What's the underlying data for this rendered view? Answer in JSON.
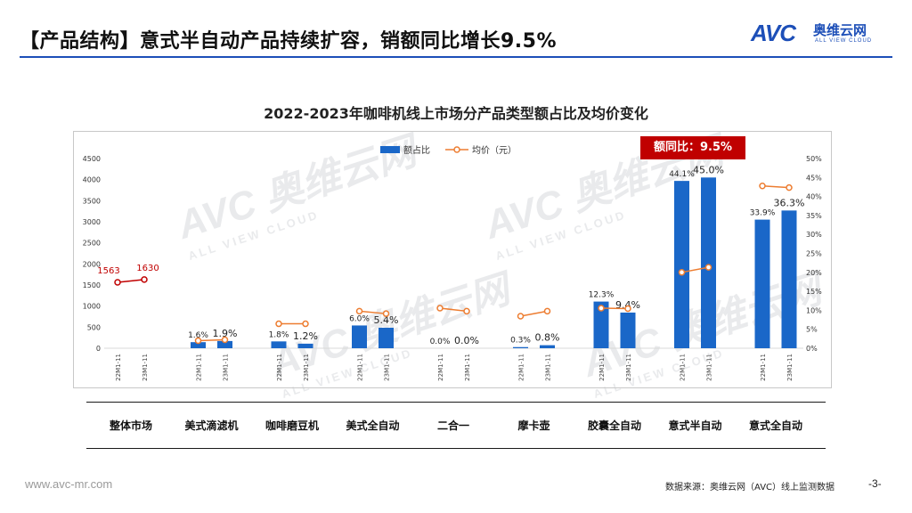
{
  "header": {
    "title": "【产品结构】意式半自动产品持续扩容，销额同比增长9.5%",
    "logo_main": "AVC",
    "logo_cn": "奥维云网",
    "logo_en": "ALL VIEW CLOUD"
  },
  "watermark": {
    "main": "AVC 奥维云网",
    "sub": "ALL VIEW CLOUD"
  },
  "callout": "额同比：9.5%",
  "footer": {
    "url": "www.avc-mr.com",
    "source": "数据来源：奥维云网（AVC）线上监测数据",
    "page": "-3-"
  },
  "colors": {
    "bar": "#1a67c8",
    "line": "#ed7d31",
    "first_line": "#c00000",
    "accent": "#1d4fb8"
  },
  "chart_data": {
    "type": "bar",
    "title": "2022-2023年咖啡机线上市场分产品类型额占比及均价变化",
    "legend": [
      "额占比",
      "均价（元）"
    ],
    "legend_position": "top",
    "categories": [
      "整体市场",
      "美式滴滤机",
      "咖啡磨豆机",
      "美式全自动",
      "二合一",
      "摩卡壶",
      "胶囊全自动",
      "意式半自动",
      "意式全自动"
    ],
    "period_labels": [
      "22M1-11",
      "23M1-11"
    ],
    "y_left_range": [
      0,
      4500
    ],
    "y_left_ticks": [
      "0",
      "500",
      "1000",
      "1500",
      "2000",
      "2500",
      "3000",
      "3500",
      "4000",
      "4500"
    ],
    "y_right_range": [
      0,
      50
    ],
    "y_right_ticks": [
      "0%",
      "5%",
      "10%",
      "15%",
      "20%",
      "25%",
      "30%",
      "35%",
      "40%",
      "45%",
      "50%"
    ],
    "series": [
      {
        "name": "额占比",
        "axis": "right",
        "unit": "%",
        "values": [
          [
            null,
            null
          ],
          [
            1.6,
            1.9
          ],
          [
            1.8,
            1.2
          ],
          [
            6.0,
            5.4
          ],
          [
            0.0,
            0.0
          ],
          [
            0.3,
            0.8
          ],
          [
            12.3,
            9.4
          ],
          [
            44.1,
            45.0
          ],
          [
            33.9,
            36.3
          ]
        ],
        "labels": [
          [
            "",
            ""
          ],
          [
            "1.6%",
            "1.9%"
          ],
          [
            "1.8%",
            "1.2%"
          ],
          [
            "6.0%",
            "5.4%"
          ],
          [
            "0.0%",
            "0.0%"
          ],
          [
            "0.3%",
            "0.8%"
          ],
          [
            "12.3%",
            "9.4%"
          ],
          [
            "44.1%",
            "45.0%"
          ],
          [
            "33.9%",
            "36.3%"
          ]
        ]
      },
      {
        "name": "均价（元）",
        "axis": "left",
        "unit": "元",
        "values": [
          [
            1563,
            1630
          ],
          [
            180,
            200
          ],
          [
            580,
            580
          ],
          [
            880,
            820
          ],
          [
            950,
            880
          ],
          [
            760,
            880
          ],
          [
            950,
            940
          ],
          [
            1800,
            1920
          ],
          [
            3850,
            3810
          ]
        ],
        "labels": [
          [
            "1563",
            "1630"
          ],
          [
            "",
            ""
          ],
          [
            "",
            ""
          ],
          [
            "",
            ""
          ],
          [
            "",
            ""
          ],
          [
            "",
            ""
          ],
          [
            "",
            ""
          ],
          [
            "",
            ""
          ],
          [
            "",
            ""
          ]
        ]
      }
    ]
  }
}
